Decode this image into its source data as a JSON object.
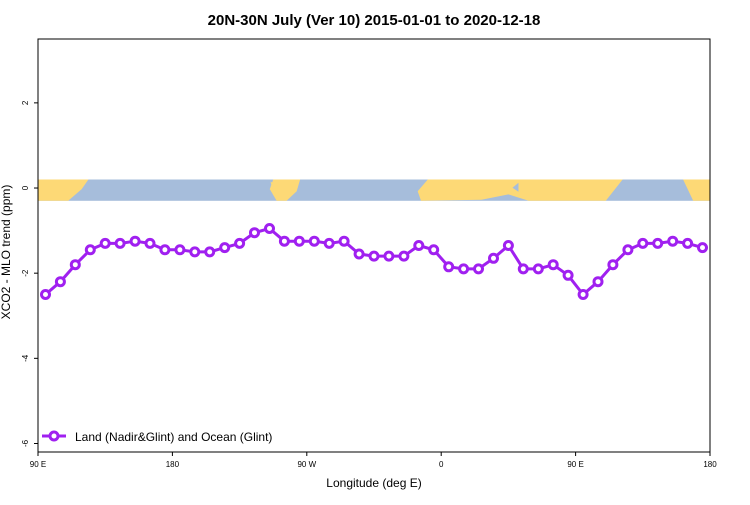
{
  "chart_data": {
    "type": "line",
    "title": "20N-30N July (Ver 10)   2015-01-01 to 2020-12-18",
    "xlabel": "Longitude (deg E)",
    "ylabel": "XCO2 - MLO trend (ppm)",
    "xlim": [
      90,
      540
    ],
    "ylim": [
      -6.2,
      3.5
    ],
    "xticks": [
      {
        "value": 90,
        "label": "90 E"
      },
      {
        "value": 180,
        "label": "180"
      },
      {
        "value": 270,
        "label": "90 W"
      },
      {
        "value": 360,
        "label": "0"
      },
      {
        "value": 450,
        "label": "90 E"
      },
      {
        "value": 540,
        "label": "180"
      }
    ],
    "yticks": [
      {
        "value": 2,
        "label": "2"
      },
      {
        "value": 0,
        "label": "0"
      },
      {
        "value": -2,
        "label": "-2"
      },
      {
        "value": -4,
        "label": "-4"
      },
      {
        "value": -6,
        "label": "-6"
      }
    ],
    "grid": false,
    "legend_position": "bottom-left",
    "map_strip": {
      "y_range": [
        -0.3,
        0.2
      ],
      "ocean_color": "#a6bddb",
      "land_color": "#fdd976"
    },
    "series": [
      {
        "name": "Land (Nadir&Glint) and Ocean (Glint)",
        "color": "#a020f0",
        "x": [
          95,
          105,
          115,
          125,
          135,
          145,
          155,
          165,
          175,
          185,
          195,
          205,
          215,
          225,
          235,
          245,
          255,
          265,
          275,
          285,
          295,
          305,
          315,
          325,
          335,
          345,
          355,
          365,
          375,
          385,
          395,
          405,
          415,
          425,
          435,
          445,
          455,
          465,
          475,
          485,
          495,
          505,
          515,
          525,
          535
        ],
        "y": [
          -2.5,
          -2.2,
          -1.8,
          -1.45,
          -1.3,
          -1.3,
          -1.25,
          -1.3,
          -1.45,
          -1.45,
          -1.5,
          -1.5,
          -1.4,
          -1.3,
          -1.05,
          -0.95,
          -1.25,
          -1.25,
          -1.25,
          -1.3,
          -1.25,
          -1.55,
          -1.6,
          -1.6,
          -1.6,
          -1.35,
          -1.45,
          -1.85,
          -1.9,
          -1.9,
          -1.65,
          -1.35,
          -1.9,
          -1.9,
          -1.8,
          -2.05,
          -2.5,
          -2.2,
          -1.8,
          -1.45,
          -1.3,
          -1.3,
          -1.25,
          -1.3,
          -1.4
        ]
      }
    ]
  }
}
